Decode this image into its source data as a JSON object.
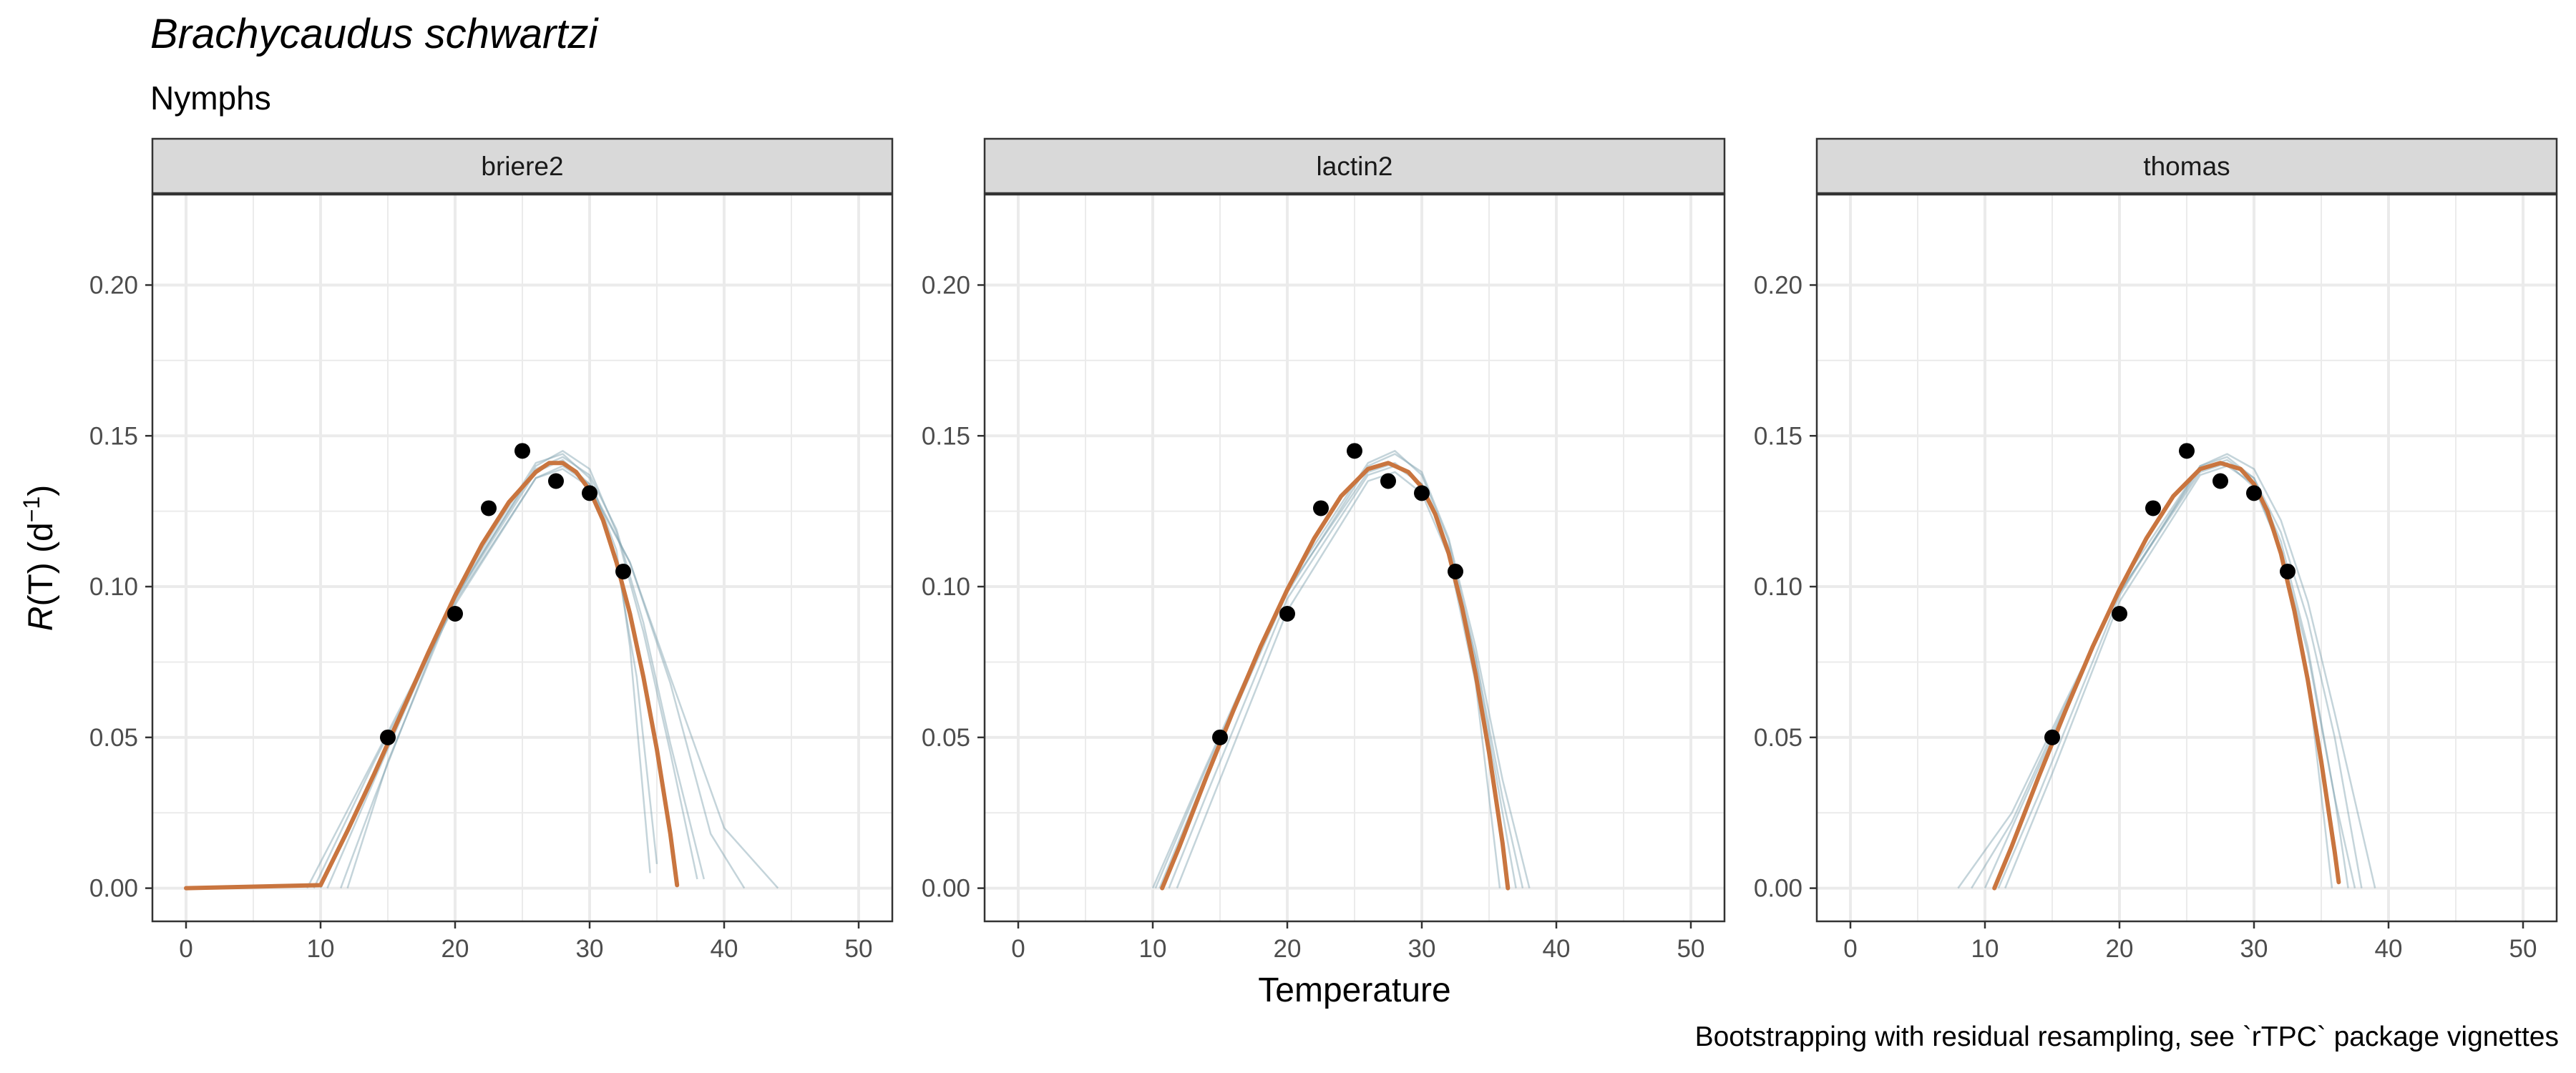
{
  "title": "Brachycaudus schwartzi",
  "subtitle": "Nymphs",
  "caption": "Bootstrapping with residual resampling, see `rTPC` package vignettes",
  "colors": {
    "fit": "#c9753f",
    "bootstrap": "#7d9fae",
    "points": "#000000",
    "strip_fill": "#d9d9d9",
    "grid": "#ebebeb"
  },
  "chart_data": {
    "type": "line",
    "facets": [
      "briere2",
      "lactin2",
      "thomas"
    ],
    "xlabel": "Temperature",
    "ylabel_prefix": "R",
    "ylabel_rest": "(T) (d",
    "ylabel_sup": "−1",
    "ylabel_close": ")",
    "xlim": [
      -2.5,
      52.5
    ],
    "ylim": [
      -0.011,
      0.23
    ],
    "x_ticks": [
      0,
      10,
      20,
      30,
      40,
      50
    ],
    "y_ticks": [
      0.0,
      0.05,
      0.1,
      0.15,
      0.2
    ],
    "y_tick_labels": [
      "0.00",
      "0.05",
      "0.10",
      "0.15",
      "0.20"
    ],
    "grid": true,
    "observed_points": {
      "x": [
        15,
        20,
        22.5,
        25,
        27.5,
        30,
        32.5
      ],
      "y": [
        0.05,
        0.091,
        0.126,
        0.145,
        0.135,
        0.131,
        0.105
      ]
    },
    "fitted": {
      "briere2": {
        "x": [
          0,
          10,
          12,
          14,
          16,
          18,
          20,
          22,
          24,
          26,
          27,
          28,
          29,
          30,
          31,
          32,
          33,
          34,
          35,
          36,
          36.5
        ],
        "y": [
          0,
          0.001,
          0.019,
          0.038,
          0.058,
          0.078,
          0.097,
          0.114,
          0.128,
          0.138,
          0.141,
          0.141,
          0.138,
          0.132,
          0.122,
          0.108,
          0.091,
          0.07,
          0.046,
          0.018,
          0.001
        ]
      },
      "lactin2": {
        "x": [
          10.7,
          12,
          14,
          16,
          18,
          20,
          22,
          24,
          26,
          27.5,
          29,
          30,
          31,
          32,
          33,
          34,
          35,
          36,
          36.4
        ],
        "y": [
          0,
          0.014,
          0.037,
          0.059,
          0.08,
          0.099,
          0.116,
          0.13,
          0.139,
          0.141,
          0.138,
          0.133,
          0.124,
          0.111,
          0.093,
          0.071,
          0.045,
          0.015,
          0
        ]
      },
      "thomas": {
        "x": [
          10.7,
          12,
          14,
          16,
          18,
          20,
          22,
          24,
          26,
          27.5,
          29,
          30,
          31,
          32,
          33,
          34,
          35,
          36,
          36.3
        ],
        "y": [
          0,
          0.014,
          0.037,
          0.059,
          0.08,
          0.099,
          0.116,
          0.13,
          0.139,
          0.141,
          0.139,
          0.134,
          0.125,
          0.111,
          0.092,
          0.069,
          0.042,
          0.012,
          0.002
        ]
      }
    },
    "bootstrap_curves": {
      "briere2": [
        {
          "x": [
            9,
            14,
            20,
            26,
            28,
            30,
            33,
            36,
            40,
            44
          ],
          "y": [
            0,
            0.043,
            0.095,
            0.136,
            0.139,
            0.133,
            0.108,
            0.07,
            0.02,
            0
          ]
        },
        {
          "x": [
            9.5,
            14,
            20,
            26,
            28,
            30,
            33,
            36,
            39,
            41.5
          ],
          "y": [
            0,
            0.042,
            0.094,
            0.136,
            0.14,
            0.134,
            0.108,
            0.068,
            0.018,
            0
          ]
        },
        {
          "x": [
            10,
            14,
            20,
            26,
            28,
            30,
            32,
            34,
            36,
            38
          ],
          "y": [
            0,
            0.038,
            0.096,
            0.14,
            0.145,
            0.139,
            0.118,
            0.085,
            0.045,
            0.003
          ]
        },
        {
          "x": [
            10.5,
            14,
            20,
            26,
            28,
            30,
            32,
            34,
            36,
            38.5
          ],
          "y": [
            0,
            0.036,
            0.097,
            0.139,
            0.143,
            0.137,
            0.119,
            0.088,
            0.048,
            0.003
          ]
        },
        {
          "x": [
            11.5,
            14,
            20,
            26,
            28,
            30,
            32,
            33,
            34.5
          ],
          "y": [
            0,
            0.03,
            0.098,
            0.141,
            0.144,
            0.136,
            0.112,
            0.08,
            0.005
          ]
        },
        {
          "x": [
            12,
            15,
            20,
            26,
            28,
            30,
            32,
            33.5,
            35
          ],
          "y": [
            0,
            0.042,
            0.096,
            0.138,
            0.142,
            0.134,
            0.109,
            0.07,
            0.008
          ]
        }
      ],
      "lactin2": [
        {
          "x": [
            10,
            14,
            20,
            26,
            28,
            30,
            32,
            34,
            36,
            37.5
          ],
          "y": [
            0,
            0.041,
            0.1,
            0.141,
            0.145,
            0.137,
            0.115,
            0.077,
            0.03,
            0
          ]
        },
        {
          "x": [
            10.5,
            14,
            20,
            26,
            28,
            30,
            32,
            34,
            36,
            38
          ],
          "y": [
            0,
            0.038,
            0.098,
            0.14,
            0.144,
            0.138,
            0.116,
            0.08,
            0.036,
            0
          ]
        },
        {
          "x": [
            11.2,
            14,
            20,
            26,
            28,
            30,
            32,
            34,
            36.5
          ],
          "y": [
            0,
            0.031,
            0.096,
            0.137,
            0.14,
            0.134,
            0.112,
            0.072,
            0
          ]
        },
        {
          "x": [
            11.8,
            15,
            20,
            26,
            28,
            30,
            32,
            34,
            35.8
          ],
          "y": [
            0,
            0.036,
            0.092,
            0.135,
            0.138,
            0.131,
            0.11,
            0.068,
            0
          ]
        },
        {
          "x": [
            10.2,
            14,
            20,
            26,
            28,
            30,
            32,
            34,
            36,
            37
          ],
          "y": [
            0,
            0.04,
            0.099,
            0.138,
            0.141,
            0.134,
            0.113,
            0.076,
            0.025,
            0
          ]
        }
      ],
      "thomas": [
        {
          "x": [
            8,
            12,
            16,
            20,
            26,
            28,
            30,
            32,
            34,
            36,
            37
          ],
          "y": [
            0,
            0.025,
            0.062,
            0.098,
            0.138,
            0.141,
            0.133,
            0.112,
            0.078,
            0.03,
            0
          ]
        },
        {
          "x": [
            9,
            12,
            16,
            20,
            26,
            28,
            30,
            32,
            34,
            36,
            38
          ],
          "y": [
            0,
            0.022,
            0.061,
            0.098,
            0.139,
            0.142,
            0.136,
            0.118,
            0.089,
            0.05,
            0
          ]
        },
        {
          "x": [
            10,
            14,
            20,
            26,
            28,
            30,
            32,
            34,
            36,
            39
          ],
          "y": [
            0,
            0.04,
            0.1,
            0.14,
            0.144,
            0.139,
            0.122,
            0.095,
            0.058,
            0
          ]
        },
        {
          "x": [
            11,
            14,
            20,
            26,
            28,
            30,
            32,
            34,
            36,
            37.5
          ],
          "y": [
            0,
            0.031,
            0.097,
            0.14,
            0.143,
            0.136,
            0.115,
            0.08,
            0.03,
            0
          ]
        },
        {
          "x": [
            11.5,
            15,
            20,
            26,
            28,
            30,
            32,
            34,
            35.8
          ],
          "y": [
            0,
            0.038,
            0.095,
            0.137,
            0.14,
            0.134,
            0.112,
            0.07,
            0
          ]
        }
      ]
    }
  }
}
